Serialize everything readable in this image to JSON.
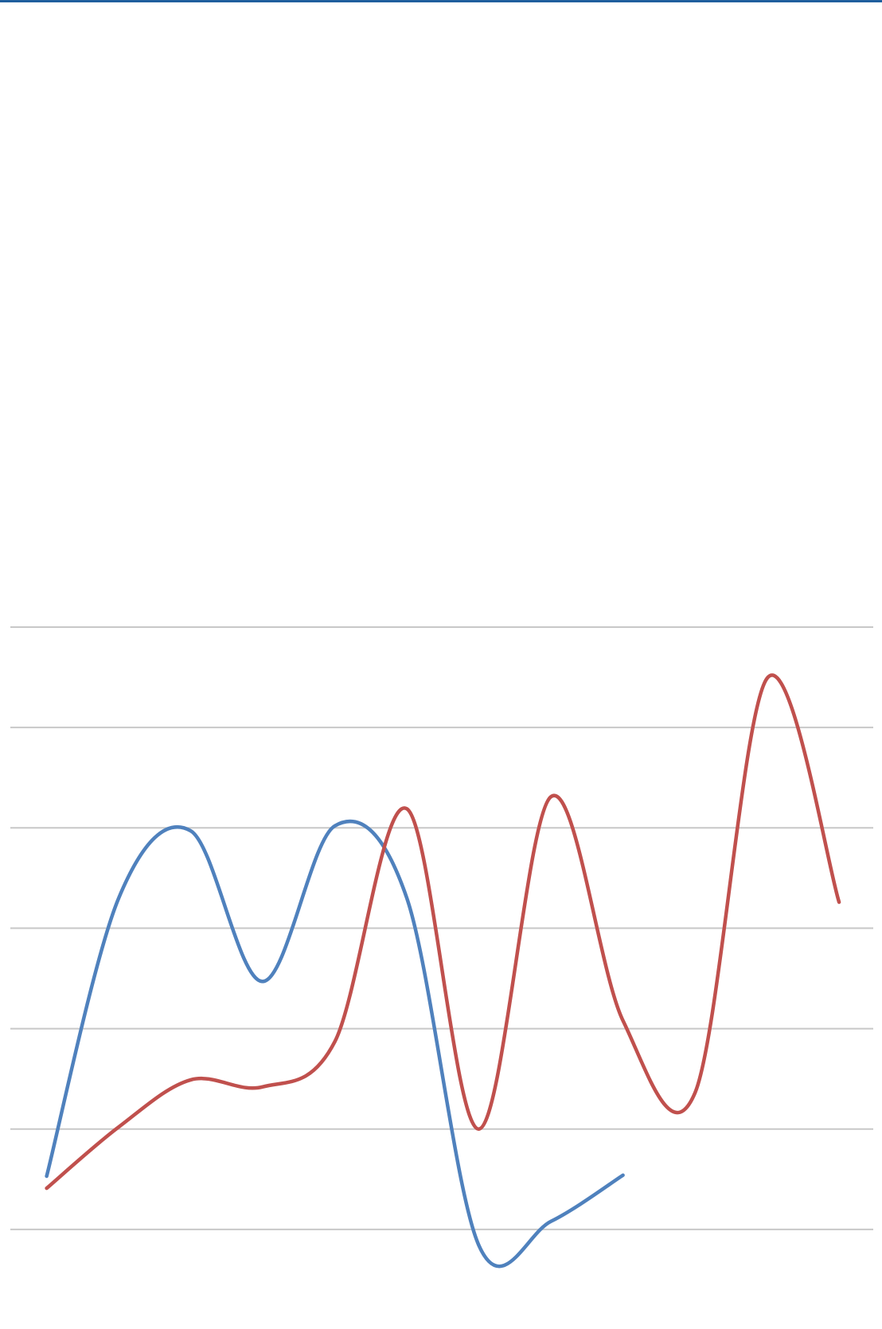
{
  "chart_data": {
    "type": "line",
    "categories": [
      null,
      null,
      null,
      null,
      null,
      null,
      null,
      null,
      null,
      null,
      null,
      null
    ],
    "series": [
      {
        "color": "#4f81bd",
        "values": [
          0.53,
          3.3,
          3.97,
          2.47,
          4.02,
          3.3,
          -0.16,
          0.08,
          0.54,
          null,
          null,
          null
        ]
      },
      {
        "color": "#c0504d",
        "values": [
          0.41,
          1.02,
          1.49,
          1.42,
          1.87,
          4.19,
          1.0,
          4.31,
          2.08,
          1.36,
          5.49,
          3.26
        ]
      }
    ],
    "ylim": [
      -1,
      6
    ],
    "yticks": [
      0,
      1,
      2,
      3,
      4,
      5,
      6
    ],
    "grid": true,
    "smooth": true
  }
}
